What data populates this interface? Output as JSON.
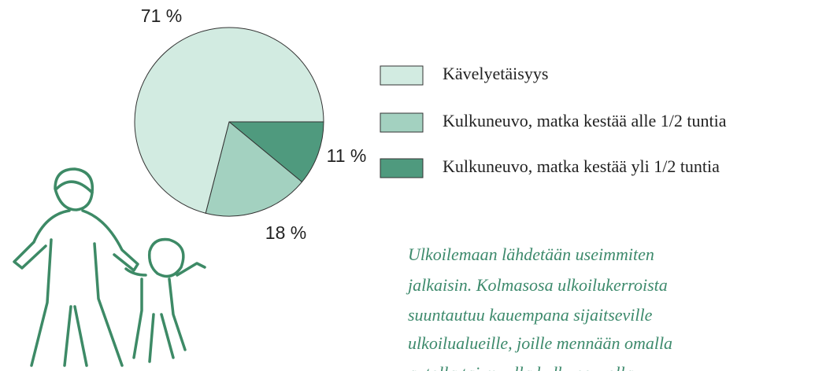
{
  "chart_data": {
    "type": "pie",
    "categories": [
      "Kävelyetäisyys",
      "Kulkuneuvo, matka kestää alle 1/2 tuntia",
      "Kulkuneuvo, matka kestää yli 1/2 tuntia"
    ],
    "values": [
      71,
      18,
      11
    ],
    "value_labels": [
      "71 %",
      "18 %",
      "11 %"
    ],
    "colors": [
      "#d2ebe1",
      "#a3d1c0",
      "#4f9a7e"
    ],
    "legend": "right"
  },
  "caption": {
    "lines": [
      "Ulkoilemaan  lähdetään useimmiten",
      "jalkaisin. Kolmasosa ulkoilukerroista",
      "suuntautuu kauempana sijaitseville",
      "ulkoilualueille, joille  mennään omalla",
      "autolla tai muulla kulkuneuvolla."
    ]
  }
}
